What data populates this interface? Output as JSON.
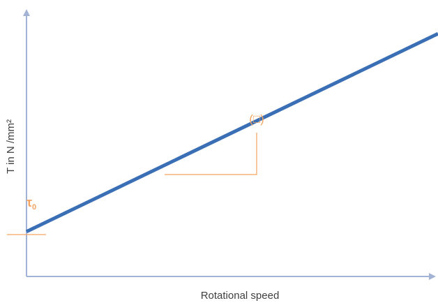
{
  "chart_data": {
    "type": "line",
    "title": "",
    "xlabel": "Rotational speed",
    "ylabel": "T in N /mm²",
    "series": [
      {
        "x": [
          0,
          1
        ],
        "y": [
          0.17,
          0.92
        ]
      }
    ],
    "annotations": {
      "intercept_label_main": "τ",
      "intercept_label_sub": "0",
      "slope_label": "(□)"
    },
    "grid": false,
    "colors": {
      "line": "#3a6fb5",
      "axis": "#a3b3d6",
      "annotation": "#f4a460"
    }
  }
}
